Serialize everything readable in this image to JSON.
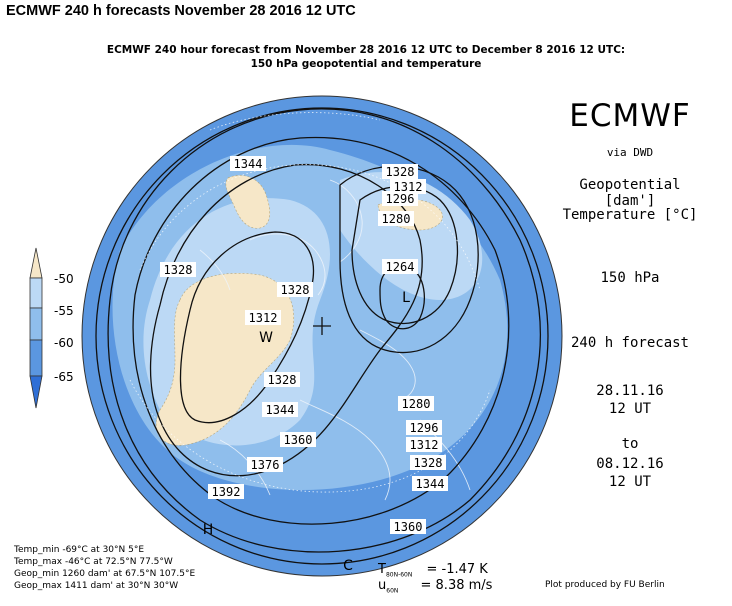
{
  "page_title": "ECMWF 240 h forecasts November 28 2016 12 UTC",
  "subtitle_line1": "ECMWF 240 hour forecast from November 28 2016 12 UTC to December 8 2016 12 UTC:",
  "subtitle_line2": "150 hPa geopotential and temperature",
  "brand": "ECMWF",
  "via": "via DWD",
  "geopotential": "Geopotential [dam']",
  "temperature": "Temperature [°C]",
  "level": "150 hPa",
  "forecast": "240 h forecast",
  "from_date": "28.11.16",
  "from_time": "12 UT",
  "to": "to",
  "to_date": "08.12.16",
  "to_time": "12 UT",
  "legend": {
    "labels": [
      "-50",
      "-55",
      "-60",
      "-65"
    ],
    "colors": [
      "#f6e7c8",
      "#bcd9f5",
      "#8fbeec",
      "#5b97e0",
      "#2f6fd6"
    ]
  },
  "contour_labels": [
    "1344",
    "1328",
    "1312",
    "1296",
    "1280",
    "1264",
    "1328",
    "1328",
    "1312",
    "1328",
    "1344",
    "1360",
    "1376",
    "1392",
    "1280",
    "1296",
    "1312",
    "1328",
    "1344",
    "1360"
  ],
  "pressure_marks": [
    "W",
    "L",
    "H",
    "C"
  ],
  "stats": [
    "Temp_min  -69°C at 30°N 5°E",
    "Temp_max  -46°C at 72.5°N 77.5°W",
    "Geop_min 1260 dam' at 67.5°N 107.5°E",
    "Geop_max 1411 dam' at 30°N 30°W"
  ],
  "diag": {
    "t_label": "T",
    "t_sub": "80N-60N",
    "t_value": "= -1.47 K",
    "u_label": "u",
    "u_sub": "60N",
    "u_value": "= 8.38 m/s"
  },
  "credit": "Plot produced by FU Berlin"
}
